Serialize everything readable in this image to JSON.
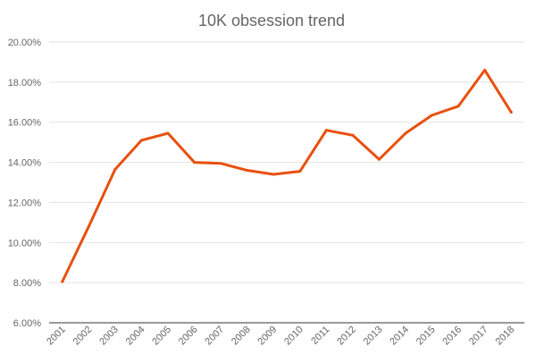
{
  "chart_data": {
    "type": "line",
    "title": "10K obsession trend",
    "xlabel": "",
    "ylabel": "",
    "x": [
      "2001",
      "2002",
      "2003",
      "2004",
      "2005",
      "2006",
      "2007",
      "2008",
      "2009",
      "2010",
      "2011",
      "2012",
      "2013",
      "2014",
      "2015",
      "2016",
      "2017",
      "2018"
    ],
    "series": [
      {
        "values": [
          8.05,
          10.8,
          13.65,
          15.1,
          15.45,
          14.0,
          13.95,
          13.6,
          13.4,
          13.55,
          15.6,
          15.35,
          14.15,
          15.45,
          16.35,
          16.8,
          18.6,
          16.5
        ],
        "color": "#e8500e"
      }
    ],
    "ylim": [
      6,
      20
    ],
    "yticks": [
      6,
      8,
      10,
      12,
      14,
      16,
      18,
      20
    ],
    "ytick_labels": [
      "6.00%",
      "8.00%",
      "10.00%",
      "12.00%",
      "14.00%",
      "16.00%",
      "18.00%",
      "20.00%"
    ],
    "grid": true,
    "legend": "none"
  }
}
